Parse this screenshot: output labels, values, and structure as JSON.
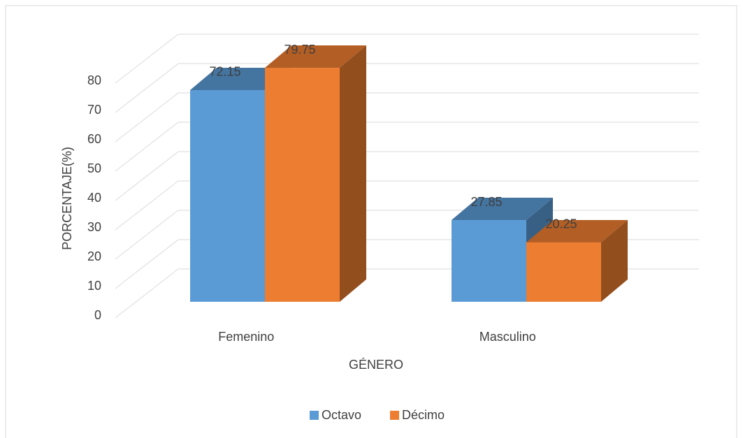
{
  "chart_data": {
    "type": "bar3d",
    "categories": [
      "Femenino",
      "Masculino"
    ],
    "series": [
      {
        "name": "Octavo",
        "color": "#5b9bd5",
        "values": [
          72.15,
          27.85
        ]
      },
      {
        "name": "Décimo",
        "color": "#ed7d31",
        "values": [
          79.75,
          20.25
        ]
      }
    ],
    "x_label": "GÉNERO",
    "y_label": "PORCENTAJE(%)",
    "ylim": [
      0,
      80
    ],
    "yticks": [
      0,
      10,
      20,
      30,
      40,
      50,
      60,
      70,
      80
    ],
    "grid": true,
    "legend": "bottom"
  }
}
